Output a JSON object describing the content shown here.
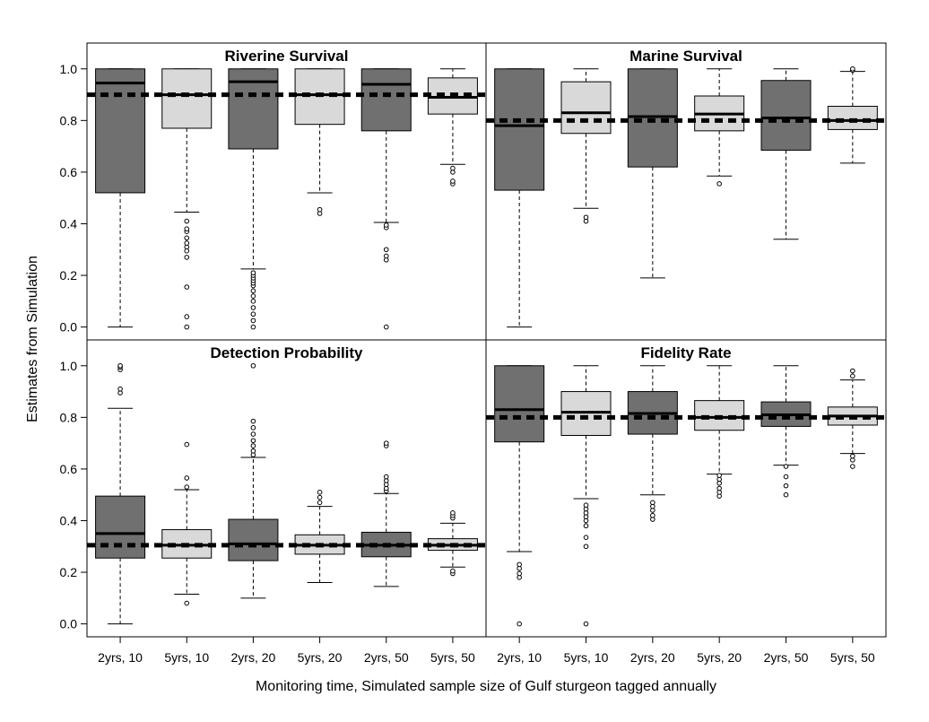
{
  "figure": {
    "xlabel": "Monitoring time, Simulated sample size of Gulf sturgeon tagged annually",
    "ylabel": "Estimates from Simulation"
  },
  "colors": {
    "dark_box": "#707070",
    "light_box": "#d9d9d9",
    "line": "#000000"
  },
  "chart_data": [
    {
      "type": "boxplot",
      "title": "Riverine Survival",
      "categories": [
        "2yrs, 10",
        "5yrs, 10",
        "2yrs, 20",
        "5yrs, 20",
        "2yrs, 50",
        "5yrs, 50"
      ],
      "ylim": [
        -0.05,
        1.1
      ],
      "y_ticks": [
        "0.0",
        "0.2",
        "0.4",
        "0.6",
        "0.8",
        "1.0"
      ],
      "reference_value": 0.9,
      "box_fill": [
        "dark",
        "light",
        "dark",
        "light",
        "dark",
        "light"
      ],
      "boxes": [
        {
          "whisker_low": 0.0,
          "q1": 0.52,
          "median": 0.945,
          "q3": 1.0,
          "whisker_high": 1.0,
          "outliers": []
        },
        {
          "whisker_low": 0.445,
          "q1": 0.77,
          "median": 0.9,
          "q3": 1.0,
          "whisker_high": 1.0,
          "outliers": [
            0.0,
            0.04,
            0.155,
            0.27,
            0.295,
            0.31,
            0.325,
            0.345,
            0.37,
            0.38,
            0.41
          ]
        },
        {
          "whisker_low": 0.225,
          "q1": 0.69,
          "median": 0.95,
          "q3": 1.0,
          "whisker_high": 1.0,
          "outliers": [
            0.0,
            0.025,
            0.05,
            0.075,
            0.1,
            0.12,
            0.14,
            0.16,
            0.17,
            0.18,
            0.19,
            0.2,
            0.21
          ]
        },
        {
          "whisker_low": 0.52,
          "q1": 0.785,
          "median": 0.9,
          "q3": 1.0,
          "whisker_high": 1.0,
          "outliers": [
            0.44,
            0.455
          ]
        },
        {
          "whisker_low": 0.405,
          "q1": 0.76,
          "median": 0.94,
          "q3": 1.0,
          "whisker_high": 1.0,
          "outliers": [
            0.0,
            0.26,
            0.275,
            0.3,
            0.385,
            0.395
          ]
        },
        {
          "whisker_low": 0.63,
          "q1": 0.825,
          "median": 0.89,
          "q3": 0.965,
          "whisker_high": 1.0,
          "outliers": [
            0.555,
            0.565,
            0.6,
            0.615
          ]
        }
      ]
    },
    {
      "type": "boxplot",
      "title": "Marine Survival",
      "categories": [
        "2yrs, 10",
        "5yrs, 10",
        "2yrs, 20",
        "5yrs, 20",
        "2yrs, 50",
        "5yrs, 50"
      ],
      "ylim": [
        -0.05,
        1.1
      ],
      "reference_value": 0.8,
      "box_fill": [
        "dark",
        "light",
        "dark",
        "light",
        "dark",
        "light"
      ],
      "boxes": [
        {
          "whisker_low": 0.0,
          "q1": 0.53,
          "median": 0.78,
          "q3": 1.0,
          "whisker_high": 1.0,
          "outliers": []
        },
        {
          "whisker_low": 0.46,
          "q1": 0.75,
          "median": 0.83,
          "q3": 0.95,
          "whisker_high": 1.0,
          "outliers": [
            0.41,
            0.425
          ]
        },
        {
          "whisker_low": 0.19,
          "q1": 0.62,
          "median": 0.815,
          "q3": 1.0,
          "whisker_high": 1.0,
          "outliers": []
        },
        {
          "whisker_low": 0.585,
          "q1": 0.76,
          "median": 0.825,
          "q3": 0.895,
          "whisker_high": 1.0,
          "outliers": [
            0.555
          ]
        },
        {
          "whisker_low": 0.34,
          "q1": 0.685,
          "median": 0.81,
          "q3": 0.955,
          "whisker_high": 1.0,
          "outliers": []
        },
        {
          "whisker_low": 0.635,
          "q1": 0.765,
          "median": 0.8,
          "q3": 0.855,
          "whisker_high": 0.99,
          "outliers": [
            0.995,
            1.0
          ]
        }
      ]
    },
    {
      "type": "boxplot",
      "title": "Detection Probability",
      "categories": [
        "2yrs, 10",
        "5yrs, 10",
        "2yrs, 20",
        "5yrs, 20",
        "2yrs, 50",
        "5yrs, 50"
      ],
      "ylim": [
        -0.05,
        1.1
      ],
      "y_ticks": [
        "0.0",
        "0.2",
        "0.4",
        "0.6",
        "0.8",
        "1.0"
      ],
      "reference_value": 0.305,
      "box_fill": [
        "dark",
        "light",
        "dark",
        "light",
        "dark",
        "light"
      ],
      "boxes": [
        {
          "whisker_low": 0.0,
          "q1": 0.255,
          "median": 0.35,
          "q3": 0.495,
          "whisker_high": 0.835,
          "outliers": [
            0.895,
            0.91,
            0.985,
            0.995,
            1.0
          ]
        },
        {
          "whisker_low": 0.115,
          "q1": 0.255,
          "median": 0.305,
          "q3": 0.365,
          "whisker_high": 0.52,
          "outliers": [
            0.08,
            0.53,
            0.565,
            0.695
          ]
        },
        {
          "whisker_low": 0.1,
          "q1": 0.245,
          "median": 0.31,
          "q3": 0.405,
          "whisker_high": 0.645,
          "outliers": [
            0.655,
            0.67,
            0.69,
            0.71,
            0.735,
            0.76,
            0.785,
            1.0
          ]
        },
        {
          "whisker_low": 0.16,
          "q1": 0.27,
          "median": 0.305,
          "q3": 0.345,
          "whisker_high": 0.455,
          "outliers": [
            0.47,
            0.49,
            0.51
          ]
        },
        {
          "whisker_low": 0.145,
          "q1": 0.26,
          "median": 0.305,
          "q3": 0.355,
          "whisker_high": 0.505,
          "outliers": [
            0.515,
            0.525,
            0.54,
            0.555,
            0.57,
            0.69,
            0.7
          ]
        },
        {
          "whisker_low": 0.22,
          "q1": 0.285,
          "median": 0.305,
          "q3": 0.33,
          "whisker_high": 0.39,
          "outliers": [
            0.195,
            0.205,
            0.41,
            0.42,
            0.43
          ]
        }
      ]
    },
    {
      "type": "boxplot",
      "title": "Fidelity Rate",
      "categories": [
        "2yrs, 10",
        "5yrs, 10",
        "2yrs, 20",
        "5yrs, 20",
        "2yrs, 50",
        "5yrs, 50"
      ],
      "x_ticks": [
        "2yrs, 10",
        "5yrs, 10",
        "2yrs, 20",
        "5yrs, 20",
        "2yrs, 50",
        "5yrs, 50"
      ],
      "ylim": [
        -0.05,
        1.1
      ],
      "reference_value": 0.8,
      "box_fill": [
        "dark",
        "light",
        "dark",
        "light",
        "dark",
        "light"
      ],
      "boxes": [
        {
          "whisker_low": 0.28,
          "q1": 0.705,
          "median": 0.83,
          "q3": 1.0,
          "whisker_high": 1.0,
          "outliers": [
            0.0,
            0.18,
            0.195,
            0.215,
            0.23
          ]
        },
        {
          "whisker_low": 0.485,
          "q1": 0.73,
          "median": 0.82,
          "q3": 0.9,
          "whisker_high": 1.0,
          "outliers": [
            0.0,
            0.3,
            0.335,
            0.38,
            0.4,
            0.415,
            0.43,
            0.445,
            0.46
          ]
        },
        {
          "whisker_low": 0.5,
          "q1": 0.735,
          "median": 0.815,
          "q3": 0.9,
          "whisker_high": 1.0,
          "outliers": [
            0.405,
            0.42,
            0.44,
            0.455,
            0.47
          ]
        },
        {
          "whisker_low": 0.58,
          "q1": 0.75,
          "median": 0.8,
          "q3": 0.865,
          "whisker_high": 1.0,
          "outliers": [
            0.495,
            0.51,
            0.525,
            0.545,
            0.56,
            0.575
          ]
        },
        {
          "whisker_low": 0.615,
          "q1": 0.765,
          "median": 0.81,
          "q3": 0.86,
          "whisker_high": 1.0,
          "outliers": [
            0.5,
            0.535,
            0.57,
            0.61
          ]
        },
        {
          "whisker_low": 0.66,
          "q1": 0.77,
          "median": 0.805,
          "q3": 0.84,
          "whisker_high": 0.945,
          "outliers": [
            0.61,
            0.635,
            0.65,
            0.96,
            0.98
          ]
        }
      ]
    }
  ]
}
